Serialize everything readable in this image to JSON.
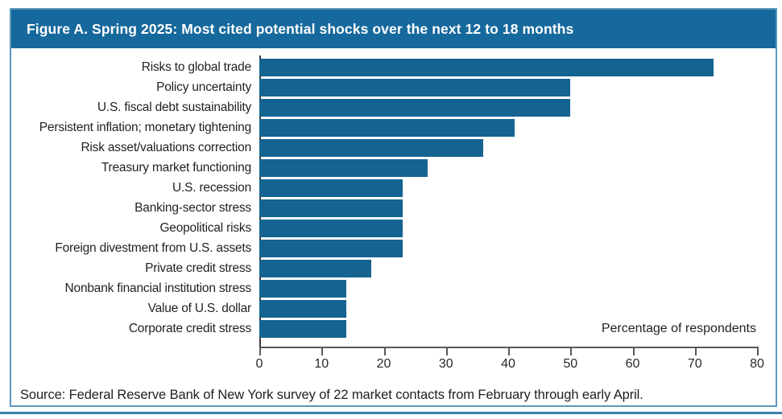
{
  "figure": {
    "title": "Figure A. Spring 2025: Most cited potential shocks over the next 12 to 18 months",
    "source": "Source: Federal Reserve Bank of New York survey of 22 market contacts from February through early April."
  },
  "colors": {
    "header_bg": "#16699c",
    "bar": "#156390",
    "frame_border": "#5b97ba",
    "bottom_rule": "#3d82ab",
    "axis": "#58595b",
    "text": "#231f20"
  },
  "chart_data": {
    "type": "bar",
    "orientation": "horizontal",
    "title": "Figure A. Spring 2025: Most cited potential shocks over the next 12 to 18 months",
    "categories": [
      "Risks to global trade",
      "Policy uncertainty",
      "U.S. fiscal debt sustainability",
      "Persistent inflation; monetary tightening",
      "Risk asset/valuations correction",
      "Treasury market functioning",
      "U.S. recession",
      "Banking-sector stress",
      "Geopolitical risks",
      "Foreign divestment from U.S. assets",
      "Private credit stress",
      "Nonbank financial institution stress",
      "Value of U.S. dollar",
      "Corporate credit stress"
    ],
    "values": [
      73,
      50,
      50,
      41,
      36,
      27,
      23,
      23,
      23,
      23,
      18,
      14,
      14,
      14
    ],
    "xlabel": "Percentage of respondents",
    "ylabel": "",
    "x_ticks": [
      0,
      10,
      20,
      30,
      40,
      50,
      60,
      70,
      80
    ],
    "xlim": [
      0,
      80
    ],
    "grid": false,
    "legend": false
  }
}
